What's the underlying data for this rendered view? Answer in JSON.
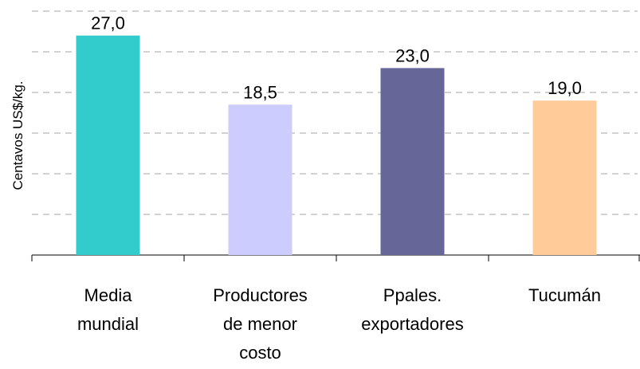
{
  "chart_data": {
    "type": "bar",
    "y_label": "Centavos US$/kg.",
    "categories": [
      "Media mundial",
      "Productores de menor costo",
      "Ppales. exportadores",
      "Tucumán"
    ],
    "values": [
      27,
      18.5,
      23,
      19
    ],
    "value_labels": [
      "27,0",
      "18,5",
      "23,0",
      "19,0"
    ],
    "colors": [
      "#33cccc",
      "#ccccff",
      "#666699",
      "#ffcc99"
    ],
    "ylim": [
      0,
      30
    ],
    "yticks": [
      0,
      5,
      10,
      15,
      20,
      25,
      30
    ],
    "grid": true
  }
}
